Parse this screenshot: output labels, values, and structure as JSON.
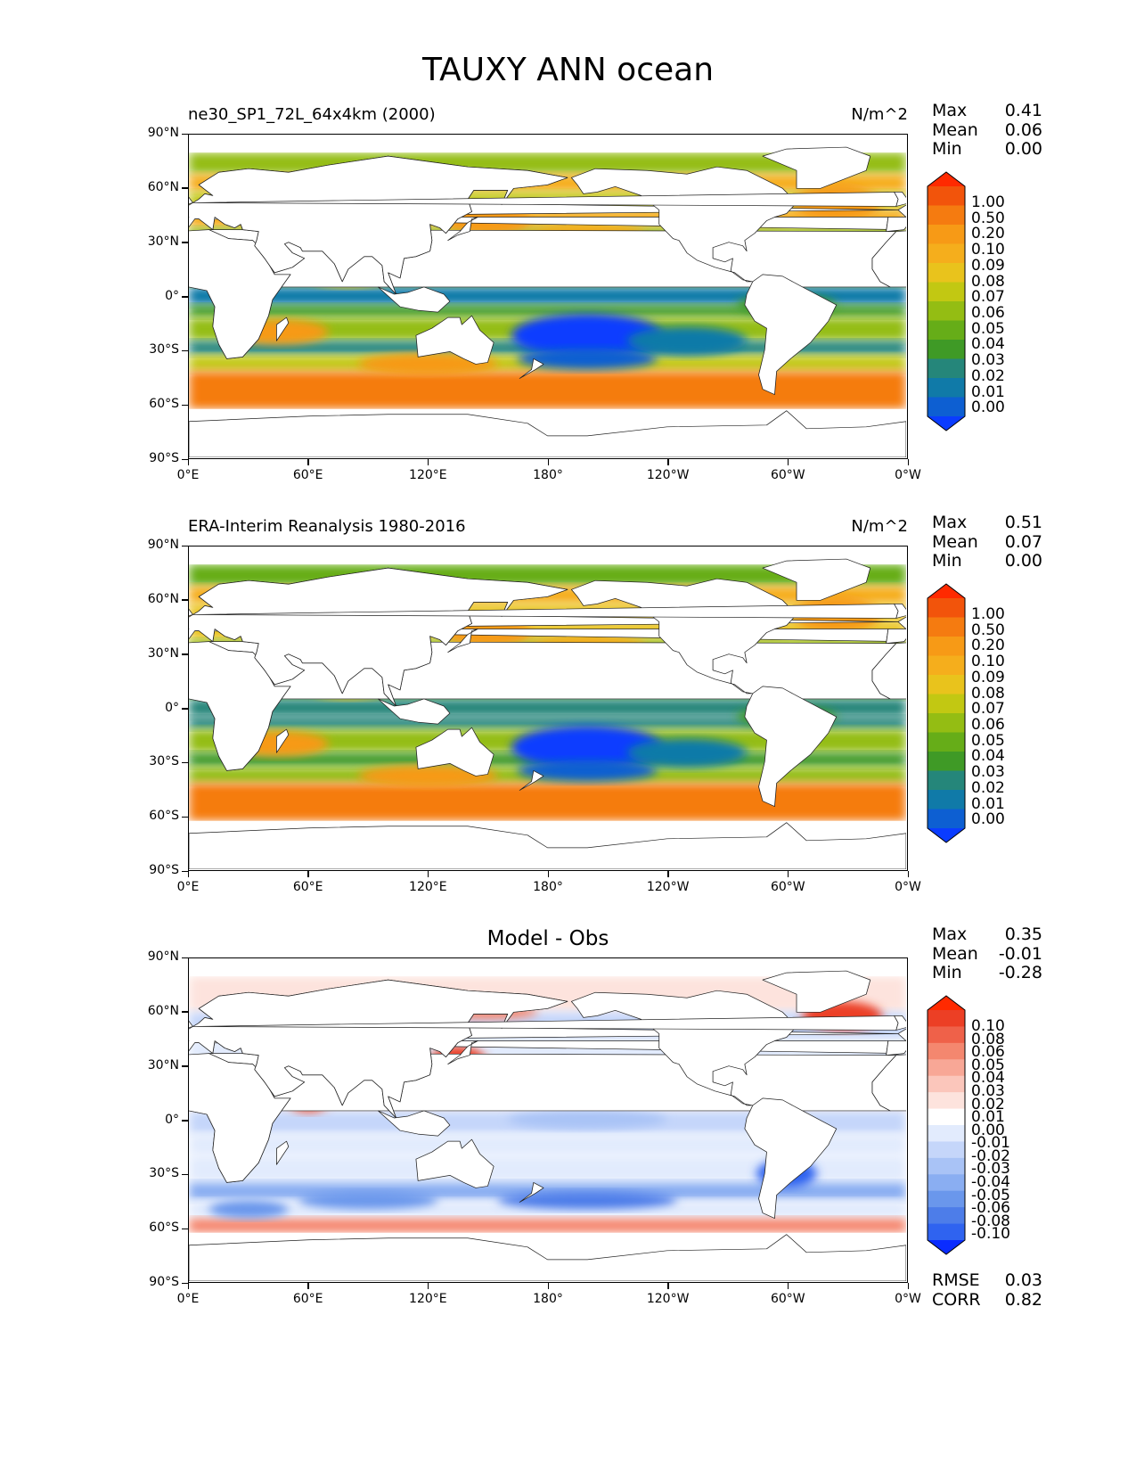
{
  "title": "TAUXY ANN ocean",
  "lat_labels": [
    "90°N",
    "60°N",
    "30°N",
    "0°",
    "30°S",
    "60°S",
    "90°S"
  ],
  "lon_labels": [
    "0°E",
    "60°E",
    "120°E",
    "180°",
    "120°W",
    "60°W",
    "0°W"
  ],
  "colors": {
    "field_scale": [
      "#0a3cff",
      "#0d5fd2",
      "#107aa8",
      "#25867a",
      "#3f9a26",
      "#66ad18",
      "#94bd13",
      "#c2c812",
      "#e9c31c",
      "#f5ae1c",
      "#f79a16",
      "#f57b10",
      "#f2540b",
      "#ff2a00"
    ],
    "diff_scale": [
      "#0a2cff",
      "#2f63f0",
      "#4d7de9",
      "#6a97ec",
      "#8aaef2",
      "#a9c3f6",
      "#c5d6fa",
      "#e2ebfd",
      "#ffffff",
      "#fde3dd",
      "#fbc6bb",
      "#f8a796",
      "#f4876f",
      "#ef6149",
      "#ec3f25",
      "#ff2a00"
    ],
    "land": "#ffffff",
    "coast": "#222222"
  },
  "panels": [
    {
      "title": "ne30_SP1_72L_64x4km (2000)",
      "units": "N/m^2",
      "stats": [
        {
          "label": "Max",
          "value": "0.41"
        },
        {
          "label": "Mean",
          "value": "0.06"
        },
        {
          "label": "Min",
          "value": "0.00"
        }
      ],
      "colorbar": [
        "1.00",
        "0.50",
        "0.20",
        "0.10",
        "0.09",
        "0.08",
        "0.07",
        "0.06",
        "0.05",
        "0.04",
        "0.03",
        "0.02",
        "0.01",
        "0.00"
      ]
    },
    {
      "title": "ERA-Interim Reanalysis 1980-2016",
      "units": "N/m^2",
      "stats": [
        {
          "label": "Max",
          "value": "0.51"
        },
        {
          "label": "Mean",
          "value": "0.07"
        },
        {
          "label": "Min",
          "value": "0.00"
        }
      ],
      "colorbar": [
        "1.00",
        "0.50",
        "0.20",
        "0.10",
        "0.09",
        "0.08",
        "0.07",
        "0.06",
        "0.05",
        "0.04",
        "0.03",
        "0.02",
        "0.01",
        "0.00"
      ]
    },
    {
      "title": "Model - Obs",
      "stats": [
        {
          "label": "Max",
          "value": "0.35"
        },
        {
          "label": "Mean",
          "value": "-0.01"
        },
        {
          "label": "Min",
          "value": "-0.28"
        }
      ],
      "colorbar": [
        "0.10",
        "0.08",
        "0.06",
        "0.05",
        "0.04",
        "0.03",
        "0.02",
        "0.01",
        "0.00",
        "-0.01",
        "-0.02",
        "-0.03",
        "-0.04",
        "-0.05",
        "-0.06",
        "-0.08",
        "-0.10"
      ],
      "extra_stats": [
        {
          "label": "RMSE",
          "value": "0.03"
        },
        {
          "label": "CORR",
          "value": "0.82"
        }
      ]
    }
  ]
}
